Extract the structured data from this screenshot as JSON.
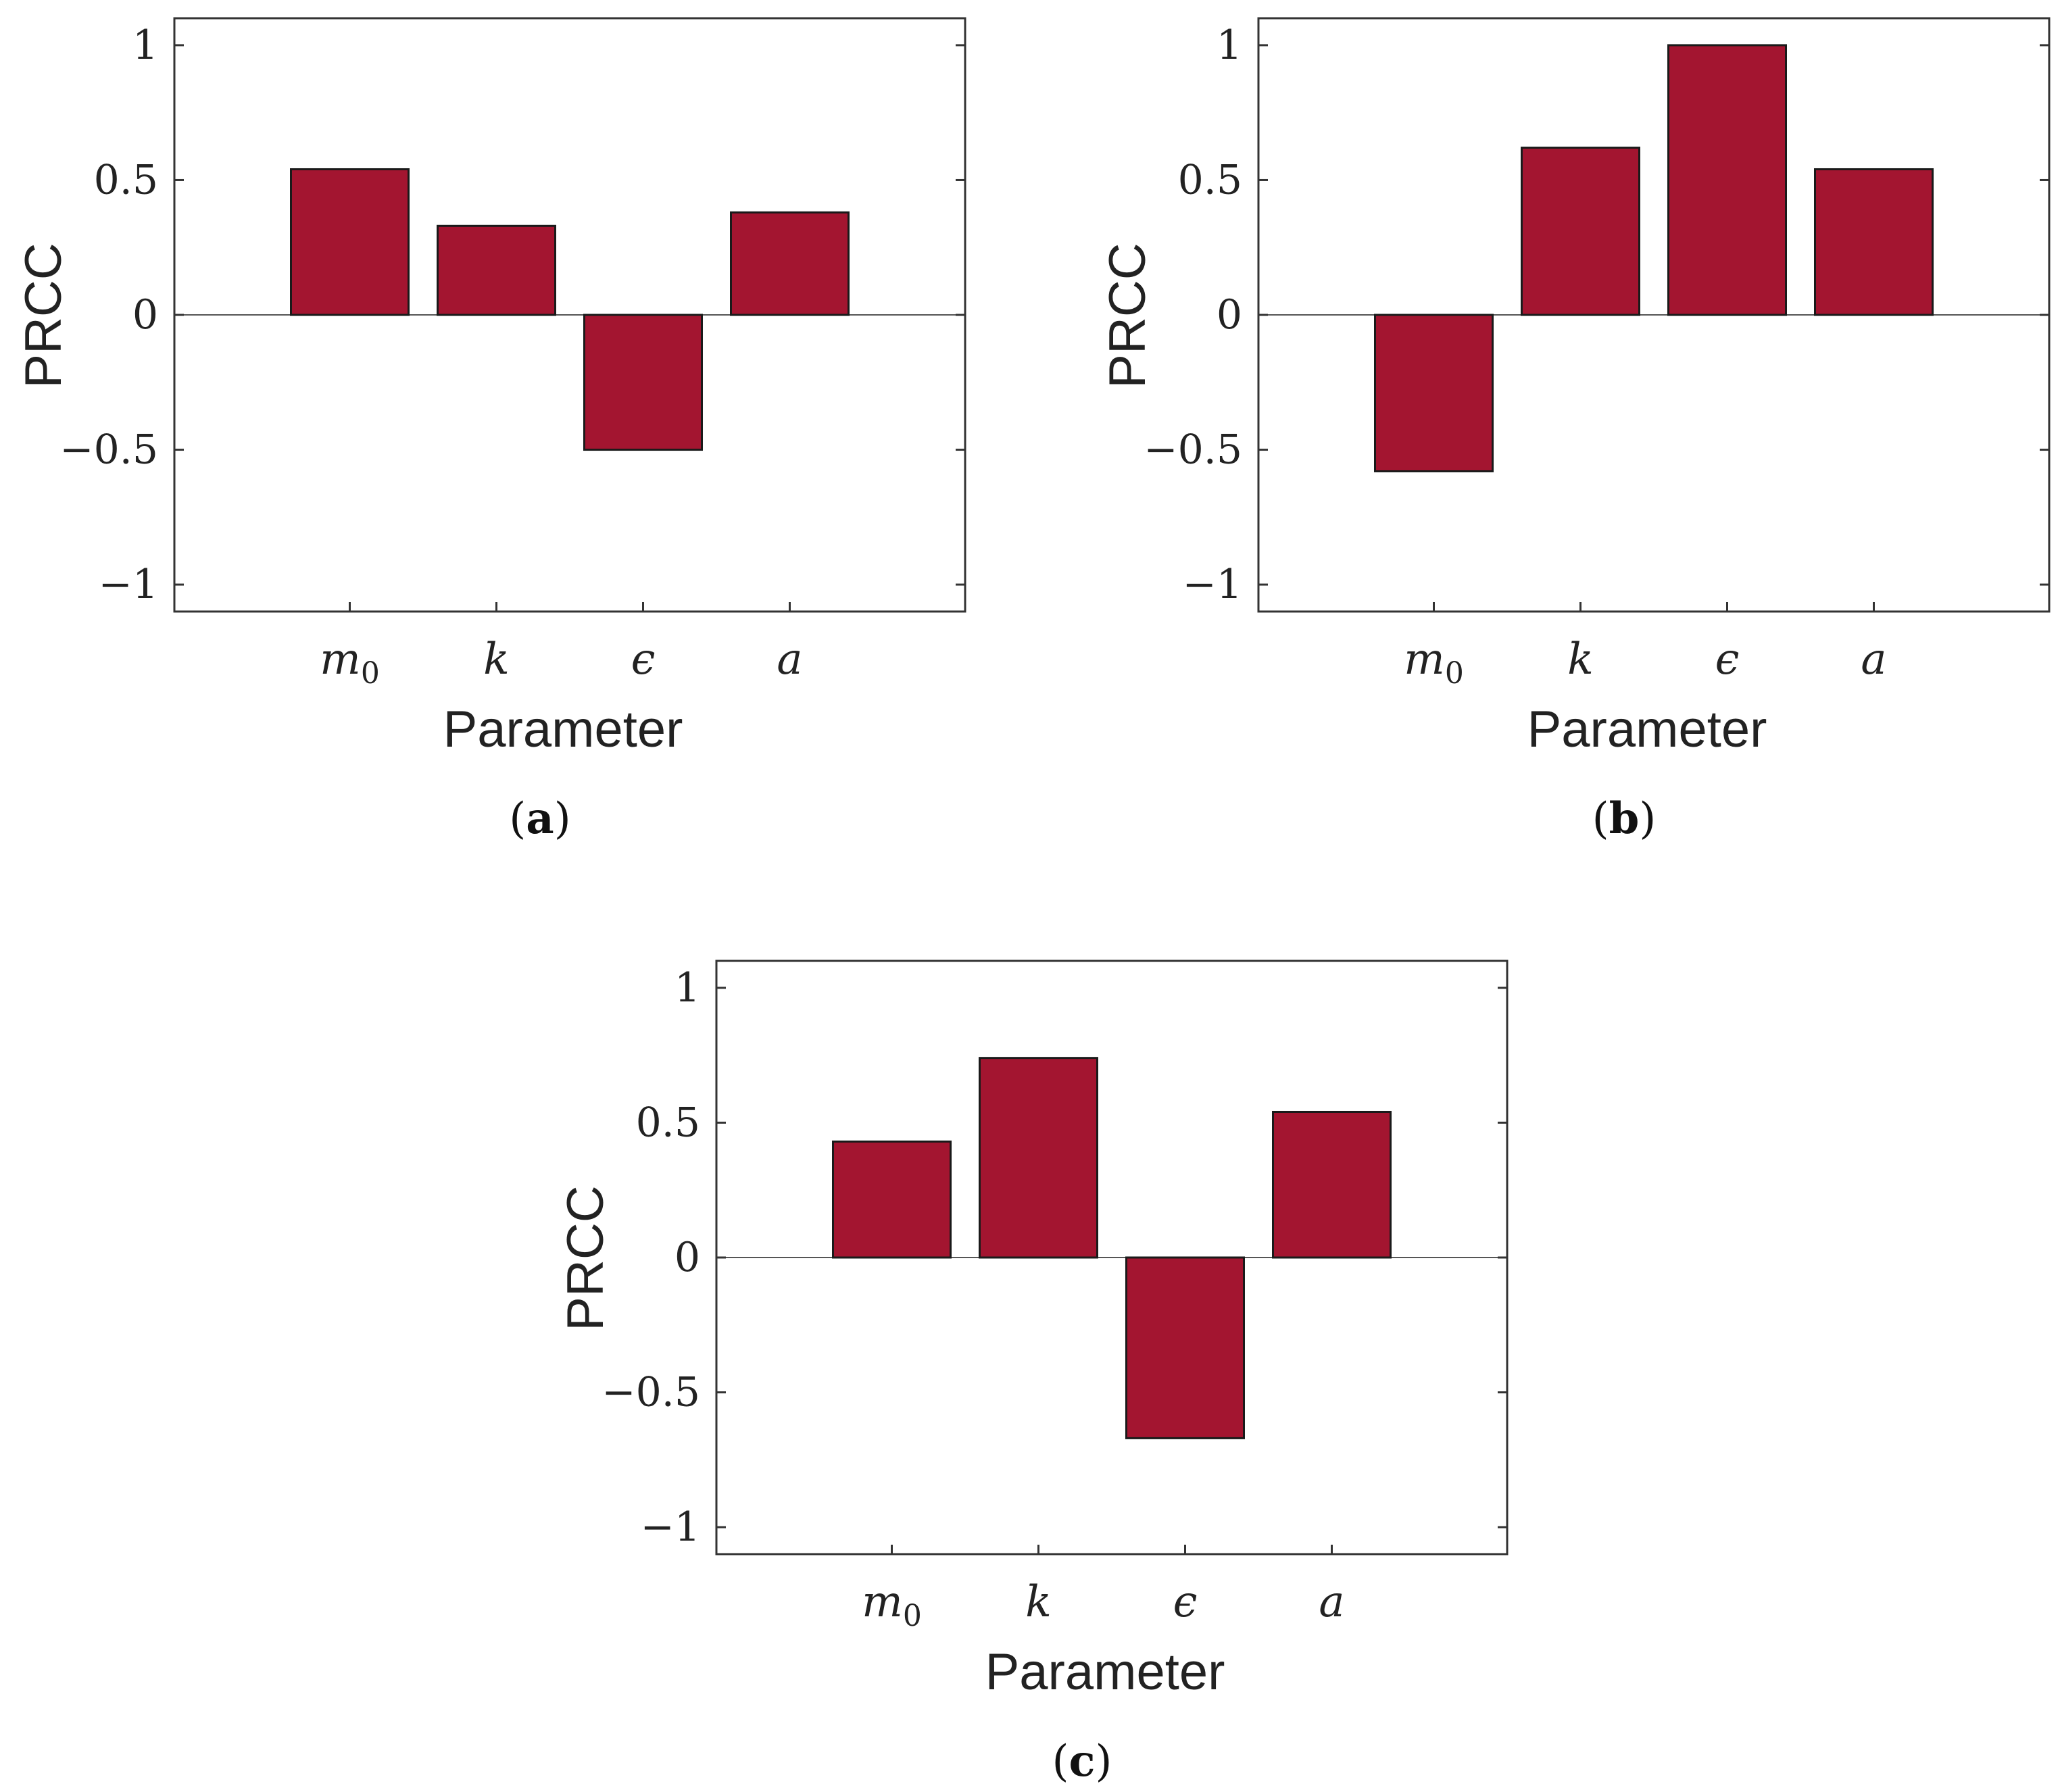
{
  "style": {
    "bar_color": "#a31530",
    "bar_edge_color": "#1a1a1a",
    "axis_color": "#333333",
    "zero_line_color": "#555555"
  },
  "chart_data": [
    {
      "type": "bar",
      "panel": "a",
      "categories": [
        {
          "main": "m",
          "sub": "0"
        },
        {
          "main": "k",
          "sub": ""
        },
        {
          "main": "ϵ",
          "sub": ""
        },
        {
          "main": "a",
          "sub": ""
        }
      ],
      "values": [
        0.54,
        0.33,
        -0.5,
        0.38
      ],
      "ylabel": "PRCC",
      "xlabel": "Parameter",
      "ylim": [
        -1.1,
        1.1
      ],
      "yticks": [
        1,
        0.5,
        0,
        -0.5,
        -1
      ],
      "ytick_labels": [
        "1",
        "0.5",
        "0",
        "−0.5",
        "−1"
      ],
      "grid": false
    },
    {
      "type": "bar",
      "panel": "b",
      "categories": [
        {
          "main": "m",
          "sub": "0"
        },
        {
          "main": "k",
          "sub": ""
        },
        {
          "main": "ϵ",
          "sub": ""
        },
        {
          "main": "a",
          "sub": ""
        }
      ],
      "values": [
        -0.58,
        0.62,
        1.0,
        0.54
      ],
      "ylabel": "PRCC",
      "xlabel": "Parameter",
      "ylim": [
        -1.1,
        1.1
      ],
      "yticks": [
        1,
        0.5,
        0,
        -0.5,
        -1
      ],
      "ytick_labels": [
        "1",
        "0.5",
        "0",
        "−0.5",
        "−1"
      ],
      "grid": false
    },
    {
      "type": "bar",
      "panel": "c",
      "categories": [
        {
          "main": "m",
          "sub": "0"
        },
        {
          "main": "k",
          "sub": ""
        },
        {
          "main": "ϵ",
          "sub": ""
        },
        {
          "main": "a",
          "sub": ""
        }
      ],
      "values": [
        0.43,
        0.74,
        -0.67,
        0.54
      ],
      "ylabel": "PRCC",
      "xlabel": "Parameter",
      "ylim": [
        -1.1,
        1.1
      ],
      "yticks": [
        1,
        0.5,
        0,
        -0.5,
        -1
      ],
      "ytick_labels": [
        "1",
        "0.5",
        "0",
        "−0.5",
        "−1"
      ],
      "grid": false
    }
  ]
}
